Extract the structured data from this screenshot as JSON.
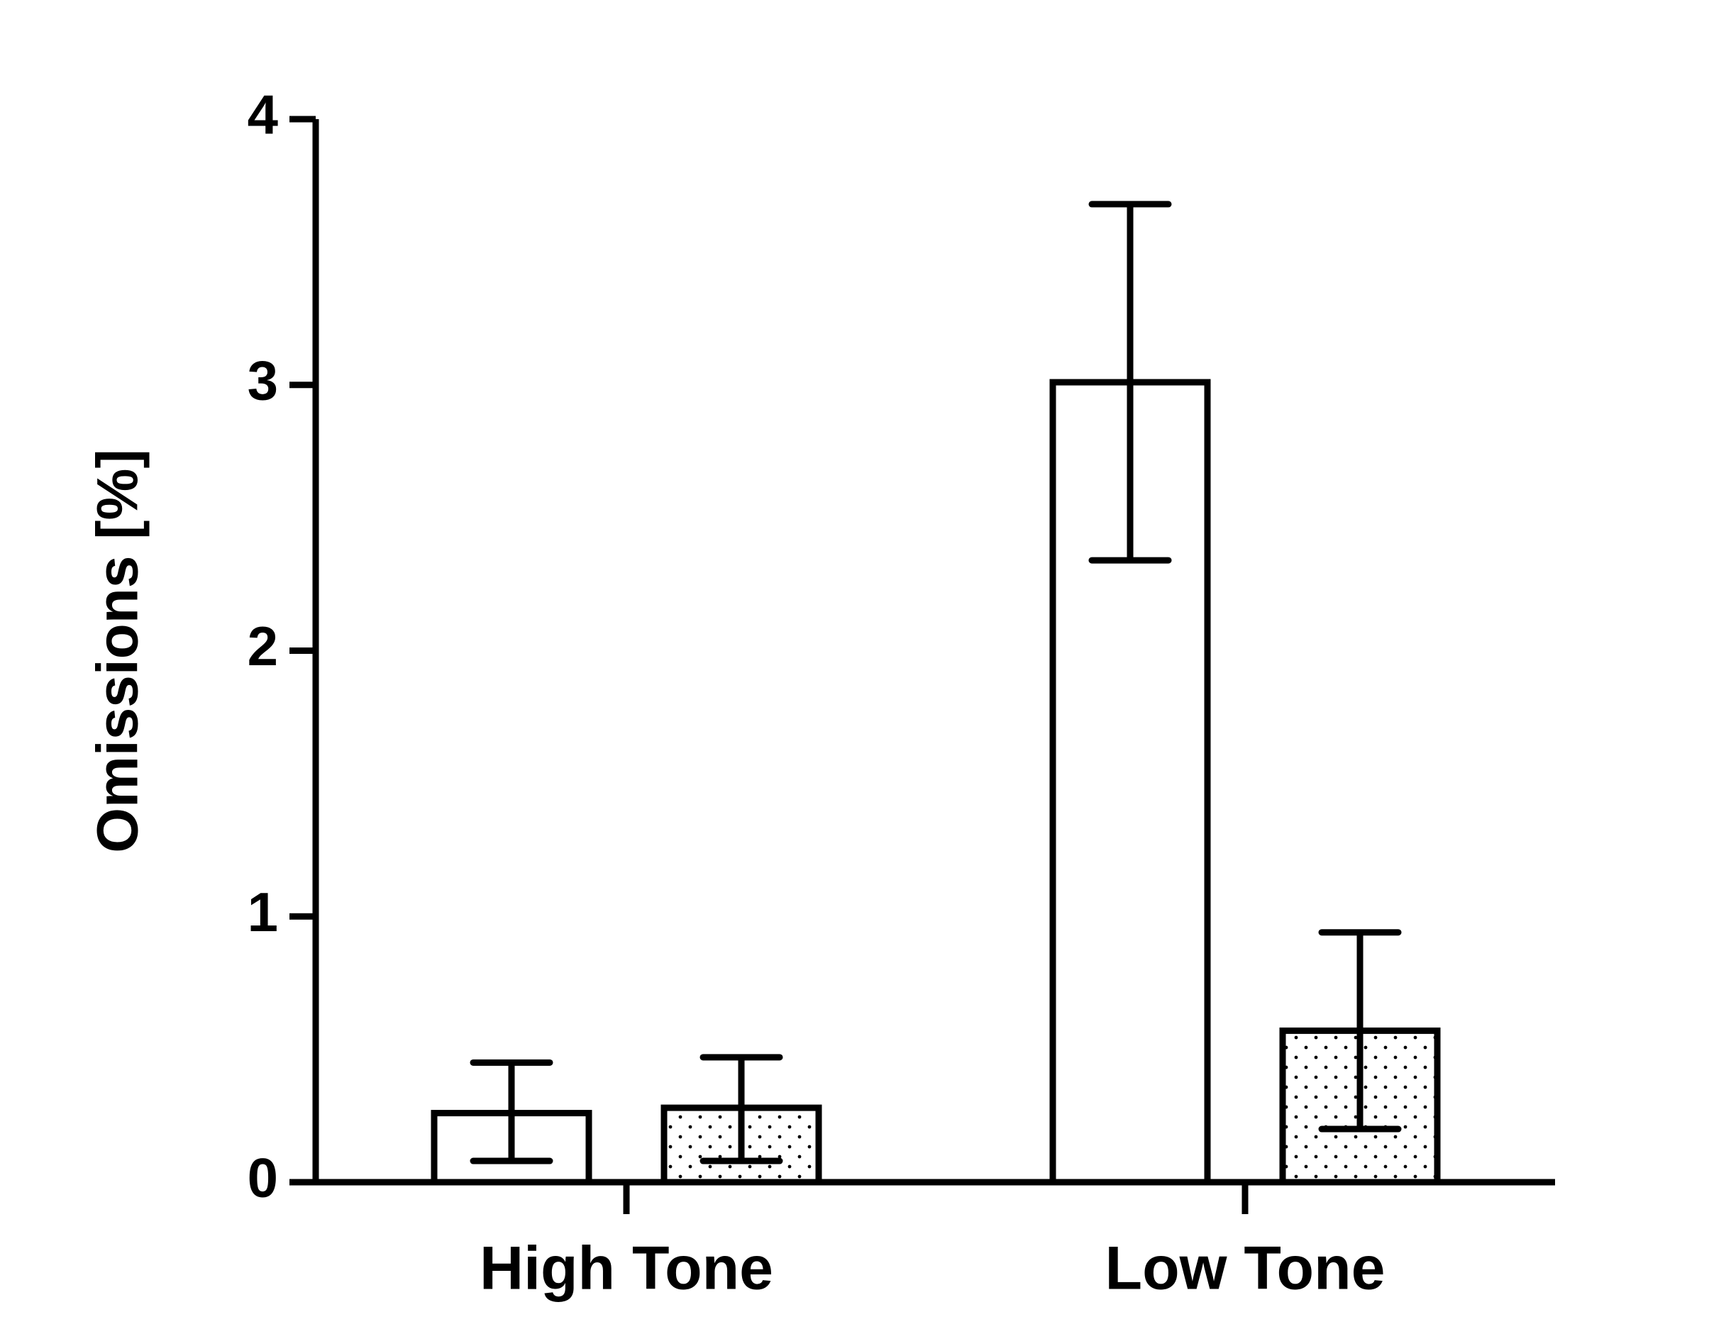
{
  "chart_data": {
    "type": "bar",
    "title": "",
    "xlabel": "",
    "ylabel": "Omissions [%]",
    "ylim": [
      0,
      4
    ],
    "yticks": [
      "0",
      "1",
      "2",
      "3",
      "4"
    ],
    "grid": false,
    "legend": "none",
    "categories": [
      "High Tone",
      "Low Tone"
    ],
    "series": [
      {
        "pattern": "plain",
        "values": [
          0.26,
          3.01
        ],
        "error_low": [
          0.08,
          2.34
        ],
        "error_high": [
          0.45,
          3.68
        ]
      },
      {
        "pattern": "dotted",
        "values": [
          0.28,
          0.57
        ],
        "error_low": [
          0.08,
          0.2
        ],
        "error_high": [
          0.47,
          0.94
        ]
      }
    ],
    "colors": {
      "stroke": "#000000",
      "fill": "#ffffff",
      "dots": "#000000"
    }
  }
}
